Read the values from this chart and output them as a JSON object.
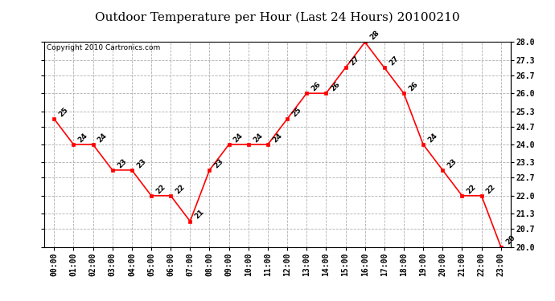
{
  "title": "Outdoor Temperature per Hour (Last 24 Hours) 20100210",
  "copyright": "Copyright 2010 Cartronics.com",
  "hours": [
    "00:00",
    "01:00",
    "02:00",
    "03:00",
    "04:00",
    "05:00",
    "06:00",
    "07:00",
    "08:00",
    "09:00",
    "10:00",
    "11:00",
    "12:00",
    "13:00",
    "14:00",
    "15:00",
    "16:00",
    "17:00",
    "18:00",
    "19:00",
    "20:00",
    "21:00",
    "22:00",
    "23:00"
  ],
  "values": [
    25,
    24,
    24,
    23,
    23,
    22,
    22,
    21,
    23,
    24,
    24,
    24,
    25,
    26,
    26,
    27,
    28,
    27,
    26,
    24,
    23,
    22,
    22,
    20
  ],
  "ylim_min": 20.0,
  "ylim_max": 28.0,
  "yticks": [
    20.0,
    20.7,
    21.3,
    22.0,
    22.7,
    23.3,
    24.0,
    24.7,
    25.3,
    26.0,
    26.7,
    27.3,
    28.0
  ],
  "line_color": "red",
  "marker_color": "red",
  "bg_color": "white",
  "grid_color": "#b0b0b0",
  "title_fontsize": 11,
  "label_fontsize": 7,
  "annotation_fontsize": 6.5,
  "copyright_fontsize": 6.5
}
